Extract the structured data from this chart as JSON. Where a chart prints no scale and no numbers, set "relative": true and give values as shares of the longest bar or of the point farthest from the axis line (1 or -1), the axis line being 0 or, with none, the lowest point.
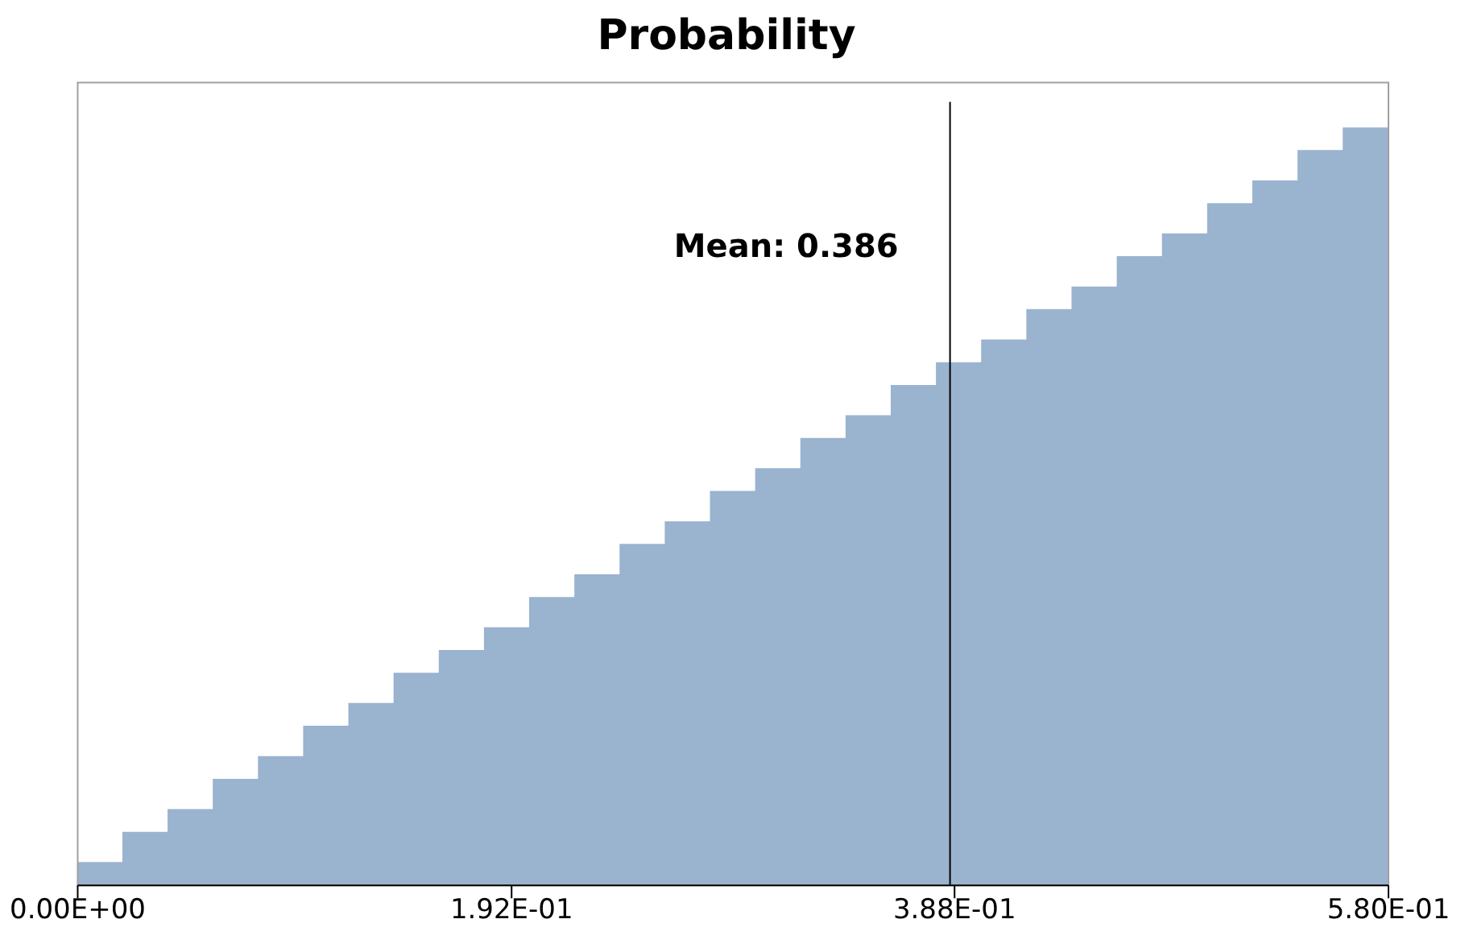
{
  "chart_data": {
    "type": "bar",
    "title": "Probability",
    "relative": true,
    "color": "#9ab3cf",
    "x": [
      0.01,
      0.03,
      0.05,
      0.07,
      0.09,
      0.11,
      0.13,
      0.15,
      0.17,
      0.19,
      0.21,
      0.23,
      0.25,
      0.27,
      0.29,
      0.31,
      0.33,
      0.35,
      0.37,
      0.39,
      0.41,
      0.43,
      0.45,
      0.47,
      0.49,
      0.51,
      0.53,
      0.55,
      0.57
    ],
    "values": [
      0.03,
      0.07,
      0.1,
      0.14,
      0.17,
      0.21,
      0.24,
      0.28,
      0.31,
      0.34,
      0.38,
      0.41,
      0.45,
      0.48,
      0.52,
      0.55,
      0.59,
      0.62,
      0.66,
      0.69,
      0.72,
      0.76,
      0.79,
      0.83,
      0.86,
      0.9,
      0.93,
      0.97,
      1
    ],
    "xlim": [
      0,
      0.58
    ],
    "xticks": [
      {
        "value": 0,
        "label": "0.00E+00"
      },
      {
        "value": 0.192,
        "label": "1.92E-01"
      },
      {
        "value": 0.388,
        "label": "3.88E-01"
      },
      {
        "value": 0.58,
        "label": "5.80E-01"
      }
    ],
    "ref_lines": [
      {
        "axis": "x",
        "value": 0.386,
        "label": "Mean: 0.386",
        "color": "#000000"
      }
    ],
    "grid": false,
    "legend": false
  }
}
